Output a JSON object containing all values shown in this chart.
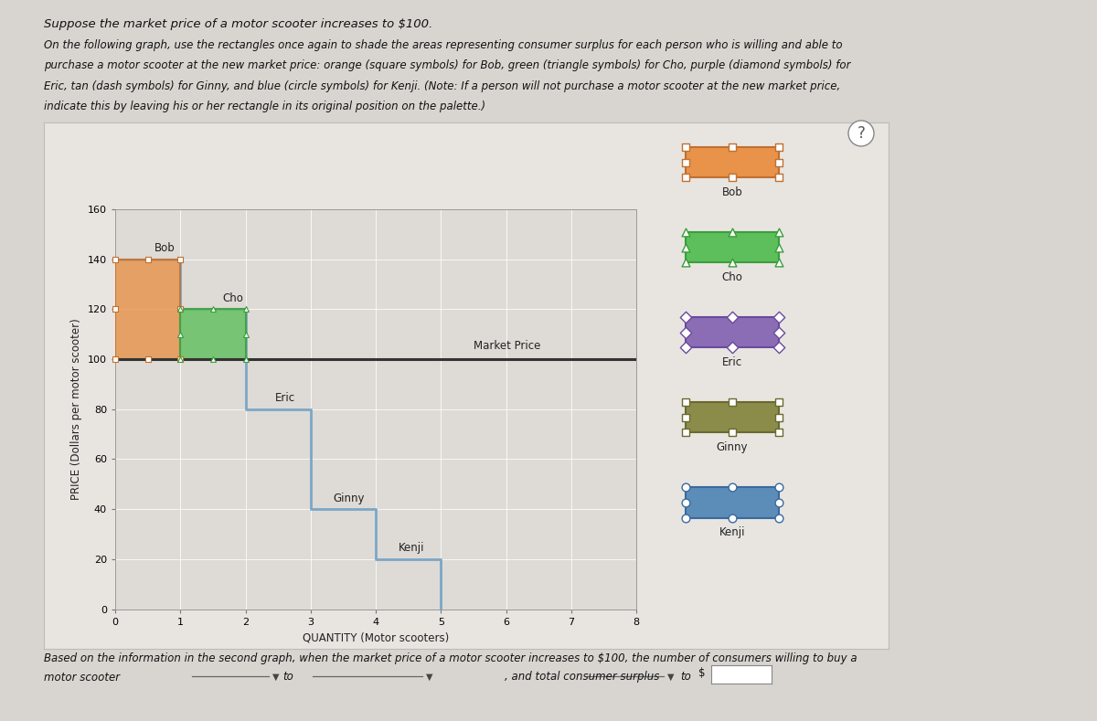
{
  "title_text": "Suppose the market price of a motor scooter increases to $100.",
  "instruction_text": "On the following graph, use the rectangles once again to shade the areas representing consumer surplus for each person who is willing and able to\npurchase a motor scooter at the new market price: orange (square symbols) for Bob, green (triangle symbols) for Cho, purple (diamond symbols) for\nEric, tan (dash symbols) for Ginny, and blue (circle symbols) for Kenji. (Note: If a person will not purchase a motor scooter at the new market price,\nindicate this by leaving his or her rectangle in its original position on the palette.)",
  "ylabel": "PRICE (Dollars per motor scooter)",
  "xlabel": "QUANTITY (Motor scooters)",
  "xlim": [
    0,
    8
  ],
  "ylim": [
    0,
    160
  ],
  "yticks": [
    0,
    20,
    40,
    60,
    80,
    100,
    120,
    140,
    160
  ],
  "xticks": [
    0,
    1,
    2,
    3,
    4,
    5,
    6,
    7,
    8
  ],
  "market_price": 100,
  "willingness": [
    140,
    120,
    80,
    40,
    20
  ],
  "x_positions": [
    0,
    1,
    2,
    3,
    4
  ],
  "step_color": "#7BA7C7",
  "market_price_label": "Market Price",
  "page_bg": "#d8d5d0",
  "box_bg": "#e8e5e1",
  "chart_bg": "#dedad5",
  "palette_items": [
    {
      "name": "Bob",
      "color": "#E8924A",
      "marker": "s",
      "edgecolor": "#c07030",
      "border": "#c07030"
    },
    {
      "name": "Cho",
      "color": "#5CBF5C",
      "marker": "^",
      "edgecolor": "#3a9e3a",
      "border": "#3a9e3a"
    },
    {
      "name": "Eric",
      "color": "#8B6DB5",
      "marker": "D",
      "edgecolor": "#6a4a9e",
      "border": "#6a4a9e"
    },
    {
      "name": "Ginny",
      "color": "#8B8B4A",
      "marker": "s",
      "edgecolor": "#6a6a30",
      "border": "#6a6a30"
    },
    {
      "name": "Kenji",
      "color": "#5B8DB8",
      "marker": "o",
      "edgecolor": "#3a6a9e",
      "border": "#3a6a9e"
    }
  ]
}
